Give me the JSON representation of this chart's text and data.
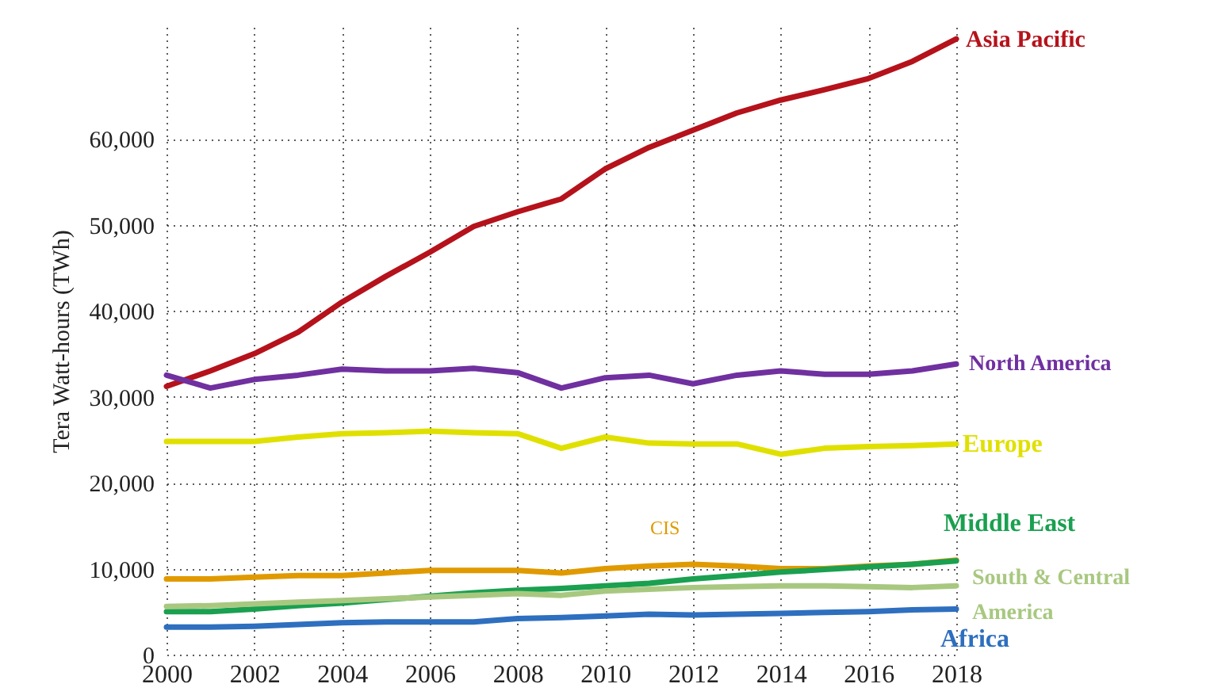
{
  "chart_data": {
    "type": "line",
    "ylabel": "Tera Watt-hours (TWh)",
    "x": [
      2000,
      2001,
      2002,
      2003,
      2004,
      2005,
      2006,
      2007,
      2008,
      2009,
      2010,
      2011,
      2012,
      2013,
      2014,
      2015,
      2016,
      2017,
      2018
    ],
    "xlim": [
      2000,
      2018
    ],
    "xticks": [
      2000,
      2002,
      2004,
      2006,
      2008,
      2010,
      2012,
      2014,
      2016,
      2018
    ],
    "ylim": [
      0,
      73000
    ],
    "yticks": [
      0,
      {
        "value": 10000,
        "label": "10,000"
      },
      {
        "value": 20000,
        "label": "20,000"
      },
      {
        "value": 30000,
        "label": "30,000"
      },
      {
        "value": 40000,
        "label": "40,000"
      },
      {
        "value": 50000,
        "label": "50,000"
      },
      {
        "value": 60000,
        "label": "60,000"
      }
    ],
    "grid": true,
    "line_style": "solid",
    "series": [
      {
        "name": "Asia Pacific",
        "color": "#b5121b",
        "values": [
          31200,
          33000,
          35000,
          37500,
          41000,
          44000,
          46800,
          49800,
          51500,
          53000,
          56500,
          59000,
          61000,
          63000,
          64500,
          65700,
          67000,
          69000,
          71600
        ]
      },
      {
        "name": "North America",
        "color": "#7030a0",
        "values": [
          32500,
          31000,
          32000,
          32500,
          33200,
          33000,
          33000,
          33300,
          32800,
          31000,
          32200,
          32500,
          31500,
          32500,
          33000,
          32600,
          32600,
          33000,
          33800
        ]
      },
      {
        "name": "Europe",
        "color": "#e0e000",
        "values": [
          24800,
          24800,
          24800,
          25300,
          25700,
          25800,
          26000,
          25800,
          25700,
          24000,
          25300,
          24600,
          24500,
          24500,
          23300,
          24000,
          24200,
          24300,
          24500
        ]
      },
      {
        "name": "CIS",
        "color": "#e09a00",
        "values": [
          8800,
          8800,
          9000,
          9200,
          9200,
          9500,
          9800,
          9800,
          9800,
          9500,
          10000,
          10300,
          10500,
          10300,
          10000,
          10000,
          10300,
          10500,
          11000
        ]
      },
      {
        "name": "Middle East",
        "color": "#1aa050",
        "values": [
          5000,
          5000,
          5300,
          5700,
          6000,
          6400,
          6800,
          7200,
          7500,
          7700,
          8000,
          8300,
          8800,
          9200,
          9600,
          9900,
          10200,
          10500,
          10900
        ]
      },
      {
        "name": "South & Central America",
        "color": "#a8c880",
        "values": [
          5600,
          5700,
          5900,
          6100,
          6300,
          6500,
          6700,
          6900,
          7100,
          6900,
          7400,
          7600,
          7800,
          7900,
          8000,
          8000,
          7900,
          7800,
          8000
        ]
      },
      {
        "name": "Africa",
        "color": "#2e6fbf",
        "values": [
          3200,
          3200,
          3300,
          3500,
          3700,
          3800,
          3800,
          3800,
          4200,
          4300,
          4500,
          4700,
          4600,
          4700,
          4800,
          4900,
          5000,
          5200,
          5300
        ]
      }
    ]
  }
}
